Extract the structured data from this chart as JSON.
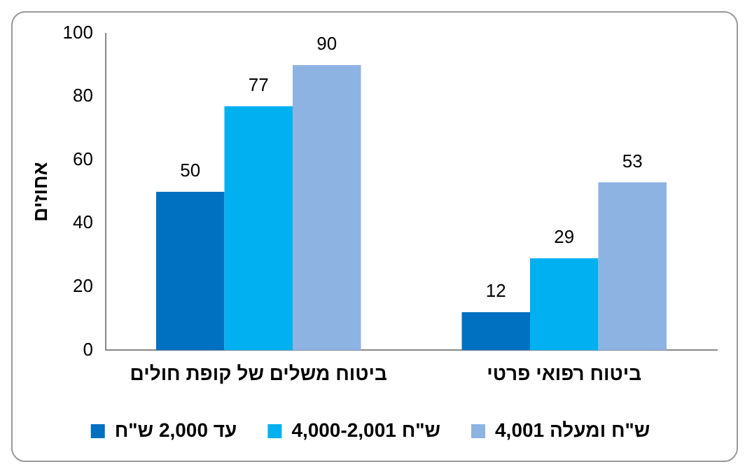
{
  "chart_data": {
    "type": "bar",
    "ylabel": "אחוזים",
    "categories": [
      "ביטוח משלים של קופת חולים",
      "ביטוח רפואי פרטי"
    ],
    "series": [
      {
        "name": "עד 2,000 ש\"ח",
        "color": "#0070c0",
        "values": [
          50,
          12
        ]
      },
      {
        "name": "4,000-2,001 ש\"ח",
        "color": "#00b0f0",
        "values": [
          77,
          29
        ]
      },
      {
        "name": "4,001 ש\"ח ומעלה",
        "color": "#8db3e2",
        "values": [
          90,
          53
        ]
      }
    ],
    "ylim": [
      0,
      100
    ],
    "yticks": [
      0,
      20,
      40,
      60,
      80,
      100
    ],
    "grid": false,
    "legend": "bottom",
    "data_labels": true
  }
}
